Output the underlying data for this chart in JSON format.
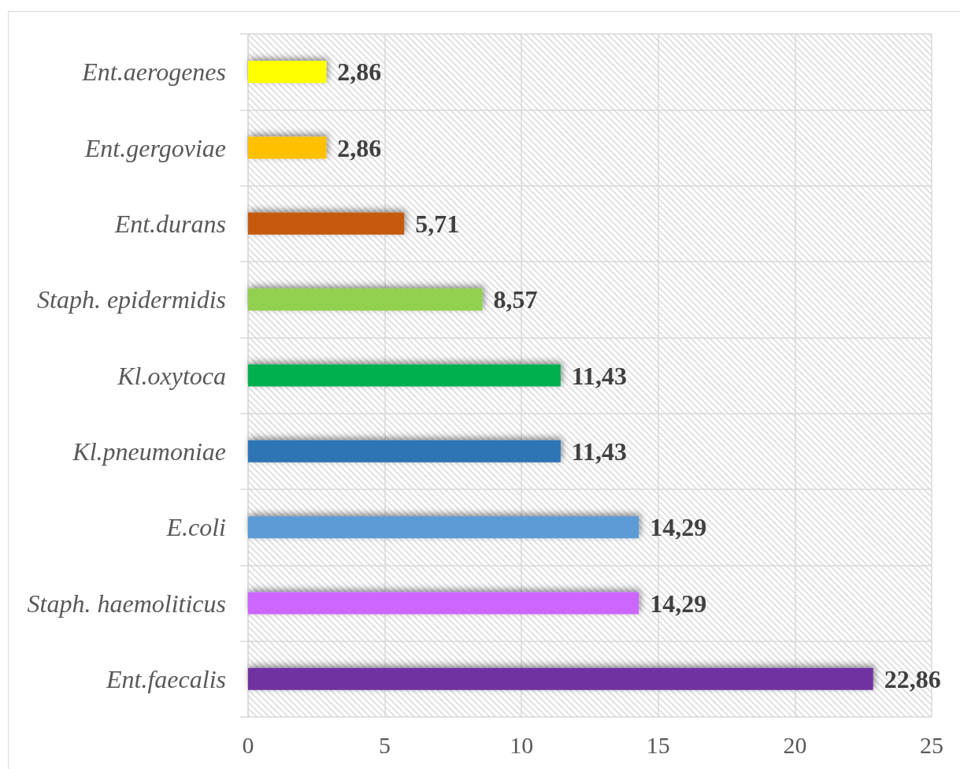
{
  "chart_data": {
    "type": "bar",
    "orientation": "horizontal",
    "categories": [
      "Ent.aerogenes",
      "Ent.gergoviae",
      "Ent.durans",
      "Staph. epidermidis",
      "Kl.oxytoca",
      "Kl.pneumoniae",
      "E.coli",
      "Staph. haemoliticus",
      "Ent.faecalis"
    ],
    "values": [
      2.86,
      2.86,
      5.71,
      8.57,
      11.43,
      11.43,
      14.29,
      14.29,
      22.86
    ],
    "colors": [
      "#ffff00",
      "#ffc000",
      "#c55a11",
      "#92d050",
      "#00b050",
      "#2e75b6",
      "#5b9bd5",
      "#cc66ff",
      "#7030a0"
    ],
    "value_labels": [
      "2,86",
      "2,86",
      "5,71",
      "8,57",
      "11,43",
      "11,43",
      "14,29",
      "14,29",
      "22,86"
    ],
    "xlim": [
      0,
      25
    ],
    "xticks": [
      0,
      5,
      10,
      15,
      20,
      25
    ],
    "grid": true
  }
}
